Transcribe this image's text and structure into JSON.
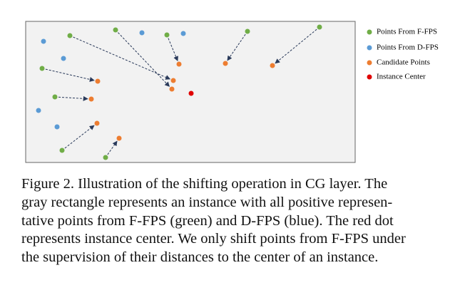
{
  "legend": {
    "items": [
      "Points From F-FPS",
      "Points From D-FPS",
      "Candidate Points",
      "Instance Center"
    ]
  },
  "caption": {
    "lines": [
      "Figure 2. Illustration of the shifting operation in CG layer.  The",
      "gray rectangle represents an instance with all positive represen-",
      "tative points from F-FPS (green) and D-FPS (blue).  The red dot",
      "represents instance center. We only shift points from F-FPS under",
      "the supervision of their distances to the center of an instance."
    ]
  }
}
